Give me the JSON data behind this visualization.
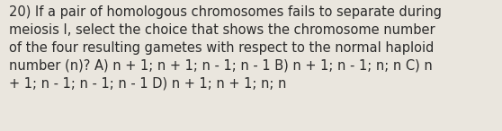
{
  "text": "20) If a pair of homologous chromosomes fails to separate during\nmeiosis I, select the choice that shows the chromosome number\nof the four resulting gametes with respect to the normal haploid\nnumber (n)? A) n + 1; n + 1; n - 1; n - 1 B) n + 1; n - 1; n; n C) n\n+ 1; n - 1; n - 1; n - 1 D) n + 1; n + 1; n; n",
  "background_color": "#eae6de",
  "text_color": "#2b2b2b",
  "font_size": 10.5,
  "fig_width": 5.58,
  "fig_height": 1.46,
  "dpi": 100
}
